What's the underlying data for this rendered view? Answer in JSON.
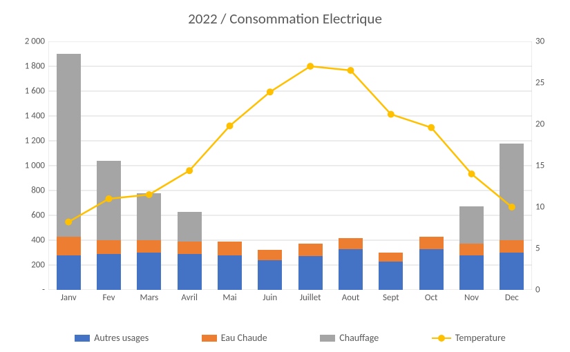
{
  "chart": {
    "type": "stacked-bar-with-line",
    "title": "2022 / Consommation Electrique",
    "title_fontsize": 21,
    "title_color": "#595959",
    "background_color": "#ffffff",
    "grid_color": "#d9d9d9",
    "axis_text_color": "#595959",
    "axis_fontsize": 13,
    "categories": [
      "Janv",
      "Fev",
      "Mars",
      "Avril",
      "Mai",
      "Juin",
      "Juillet",
      "Aout",
      "Sept",
      "Oct",
      "Nov",
      "Dec"
    ],
    "left_axis": {
      "min": 0,
      "max": 2000,
      "tick_step": 200,
      "tick_labels": [
        "-",
        "200",
        "400",
        "600",
        "800",
        "1 000",
        "1 200",
        "1 400",
        "1 600",
        "1 800",
        "2 000"
      ]
    },
    "right_axis": {
      "min": 0,
      "max": 30,
      "tick_step": 5,
      "tick_labels": [
        "0",
        "5",
        "10",
        "15",
        "20",
        "25",
        "30"
      ]
    },
    "series_bars": [
      {
        "name": "Autres usages",
        "color": "#4472c4",
        "values": [
          280,
          290,
          300,
          290,
          280,
          240,
          270,
          330,
          230,
          330,
          280,
          300
        ]
      },
      {
        "name": "Eau Chaude",
        "color": "#ed7d31",
        "values": [
          150,
          110,
          100,
          100,
          110,
          80,
          100,
          85,
          70,
          100,
          90,
          100
        ]
      },
      {
        "name": "Chauffage",
        "color": "#a5a5a5",
        "values": [
          1470,
          640,
          380,
          240,
          0,
          0,
          0,
          0,
          0,
          0,
          300,
          780
        ]
      }
    ],
    "series_line": {
      "name": "Temperature",
      "color": "#ffc000",
      "line_width": 2.5,
      "marker_size": 10,
      "values": [
        8.2,
        11.0,
        11.5,
        14.4,
        19.8,
        23.9,
        27.0,
        26.5,
        21.2,
        19.6,
        14.0,
        10.0
      ]
    },
    "bar_width_ratio": 0.6,
    "legend": {
      "items": [
        {
          "type": "swatch",
          "label": "Autres usages",
          "color": "#4472c4"
        },
        {
          "type": "swatch",
          "label": "Eau Chaude",
          "color": "#ed7d31"
        },
        {
          "type": "swatch",
          "label": "Chauffage",
          "color": "#a5a5a5"
        },
        {
          "type": "line-marker",
          "label": "Temperature",
          "color": "#ffc000"
        }
      ]
    }
  }
}
